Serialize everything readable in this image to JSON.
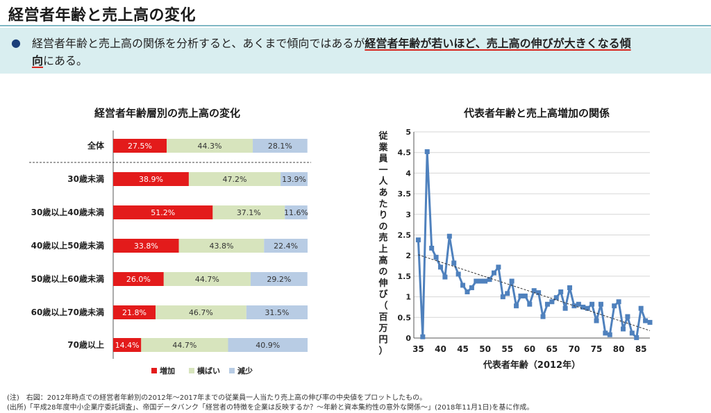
{
  "page": {
    "title": "経営者年齢と売上高の変化",
    "summary_bullet": "●",
    "summary_plain": "経営者年齢と売上高の関係を分析すると、あくまで傾向ではあるが",
    "summary_emph1": "経営者年齢が若いほど、売上高の伸びが大きくなる傾",
    "summary_emph2": "向",
    "summary_tail": "にある。",
    "footnote1": "(注)　右図：2012年時点での経営者年齢別の2012年～2017年までの従業員一人当たり売上高の伸び率の中央値をプロットしたもの。",
    "footnote2": "(出所)「平成28年度中小企業庁委託調査」、帝国データバンク「経営者の特徴を企業は反映するか？～年齢と資本集約性の意外な関係～」(2018年11月1日)を基に作成。"
  },
  "colors": {
    "increase": "#e31b1b",
    "flat": "#d7e4bd",
    "decrease": "#b8cce4",
    "line": "#4f81bd",
    "trend": "#333333"
  },
  "chart_data": [
    {
      "type": "bar",
      "stacked": true,
      "orientation": "horizontal",
      "title": "経営者年齢層別の売上高の変化",
      "categories": [
        "全体",
        "30歳未満",
        "30歳以上40歳未満",
        "40歳以上50歳未満",
        "50歳以上60歳未満",
        "60歳以上70歳未満",
        "70歳以上"
      ],
      "series": [
        {
          "name": "増加",
          "values": [
            27.5,
            38.9,
            51.2,
            33.8,
            26.0,
            21.8,
            14.4
          ],
          "labels": [
            "27.5%",
            "38.9%",
            "51.2%",
            "33.8%",
            "26.0%",
            "21.8%",
            "14.4%"
          ]
        },
        {
          "name": "横ばい",
          "values": [
            44.3,
            47.2,
            37.1,
            43.8,
            44.7,
            46.7,
            44.7
          ],
          "labels": [
            "44.3%",
            "47.2%",
            "37.1%",
            "43.8%",
            "44.7%",
            "46.7%",
            "44.7%"
          ]
        },
        {
          "name": "減少",
          "values": [
            28.1,
            13.9,
            11.6,
            22.4,
            29.2,
            31.5,
            40.9
          ],
          "labels": [
            "28.1%",
            "13.9%",
            "11.6%",
            "22.4%",
            "29.2%",
            "31.5%",
            "40.9%"
          ]
        }
      ],
      "legend": "bottom"
    },
    {
      "type": "line",
      "title": "代表者年齢と売上高増加の関係",
      "xlabel": "代表者年齢（2012年）",
      "ylabel": "従業員一人あたりの売上高の伸び（百万円）",
      "xlim": [
        34,
        87
      ],
      "ylim": [
        0,
        5
      ],
      "xticks": [
        "35",
        "40",
        "45",
        "50",
        "55",
        "60",
        "65",
        "70",
        "75",
        "80",
        "85"
      ],
      "yticks": [
        "0",
        "0.5",
        "1",
        "1.5",
        "2",
        "2.5",
        "3",
        "3.5",
        "4",
        "4.5",
        "5"
      ],
      "trendline": {
        "x": [
          35,
          87
        ],
        "y": [
          2.02,
          0.18
        ]
      },
      "x": [
        35,
        36,
        37,
        38,
        39,
        40,
        41,
        42,
        43,
        44,
        45,
        46,
        47,
        48,
        49,
        50,
        51,
        52,
        53,
        54,
        55,
        56,
        57,
        58,
        59,
        60,
        61,
        62,
        63,
        64,
        65,
        66,
        67,
        68,
        69,
        70,
        71,
        72,
        73,
        74,
        75,
        76,
        77,
        78,
        79,
        80,
        81,
        82,
        83,
        84,
        85,
        86,
        87
      ],
      "y": [
        2.38,
        0.03,
        4.52,
        2.18,
        1.96,
        1.72,
        1.48,
        2.47,
        1.82,
        1.55,
        1.28,
        1.12,
        1.22,
        1.38,
        1.38,
        1.38,
        1.42,
        1.58,
        1.72,
        1.0,
        1.08,
        1.38,
        0.78,
        1.02,
        1.02,
        0.82,
        1.15,
        1.1,
        0.52,
        0.82,
        0.88,
        0.98,
        1.12,
        0.72,
        1.22,
        0.78,
        0.82,
        0.75,
        0.72,
        0.82,
        0.42,
        0.82,
        0.12,
        0.08,
        0.78,
        0.88,
        0.22,
        0.52,
        0.12,
        0.01,
        0.72,
        0.42,
        0.38
      ]
    }
  ]
}
